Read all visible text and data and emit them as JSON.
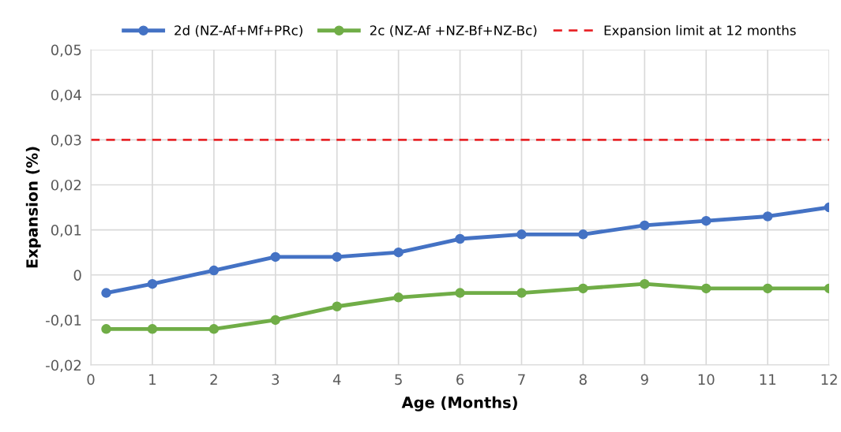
{
  "chart_data": {
    "type": "line",
    "xlabel": "Age (Months)",
    "ylabel": "Expansion (%)",
    "x": [
      0.25,
      1,
      2,
      3,
      4,
      5,
      6,
      7,
      8,
      9,
      10,
      11,
      12
    ],
    "series": [
      {
        "name": "2d (NZ-Af+Mf+PRc)",
        "color": "#4472c4",
        "values": [
          -0.004,
          -0.002,
          0.001,
          0.004,
          0.004,
          0.005,
          0.008,
          0.009,
          0.009,
          0.011,
          0.012,
          0.013,
          0.015
        ]
      },
      {
        "name": "2c (NZ-Af +NZ-Bf+NZ-Bc)",
        "color": "#70ad47",
        "values": [
          -0.012,
          -0.012,
          -0.012,
          -0.01,
          -0.007,
          -0.005,
          -0.004,
          -0.004,
          -0.003,
          -0.002,
          -0.003,
          -0.003,
          -0.003
        ]
      }
    ],
    "ref_lines": [
      {
        "axis": "y",
        "value": 0.03,
        "label": "Expansion limit at 12 months",
        "color": "#e8262a",
        "line_style": "dashed"
      }
    ],
    "xlim": [
      0,
      12
    ],
    "xticks": [
      0,
      1,
      2,
      3,
      4,
      5,
      6,
      7,
      8,
      9,
      10,
      11,
      12
    ],
    "ylim": [
      -0.02,
      0.05
    ],
    "yticks": [
      {
        "value": -0.02,
        "label": "-0,02"
      },
      {
        "value": -0.01,
        "label": "-0,01"
      },
      {
        "value": 0,
        "label": "0"
      },
      {
        "value": 0.01,
        "label": "0,01"
      },
      {
        "value": 0.02,
        "label": "0,02"
      },
      {
        "value": 0.03,
        "label": "0,03"
      },
      {
        "value": 0.04,
        "label": "0,04"
      },
      {
        "value": 0.05,
        "label": "0,05"
      }
    ],
    "grid": true,
    "legend": "top",
    "marker": "circle",
    "line_style": "solid"
  }
}
